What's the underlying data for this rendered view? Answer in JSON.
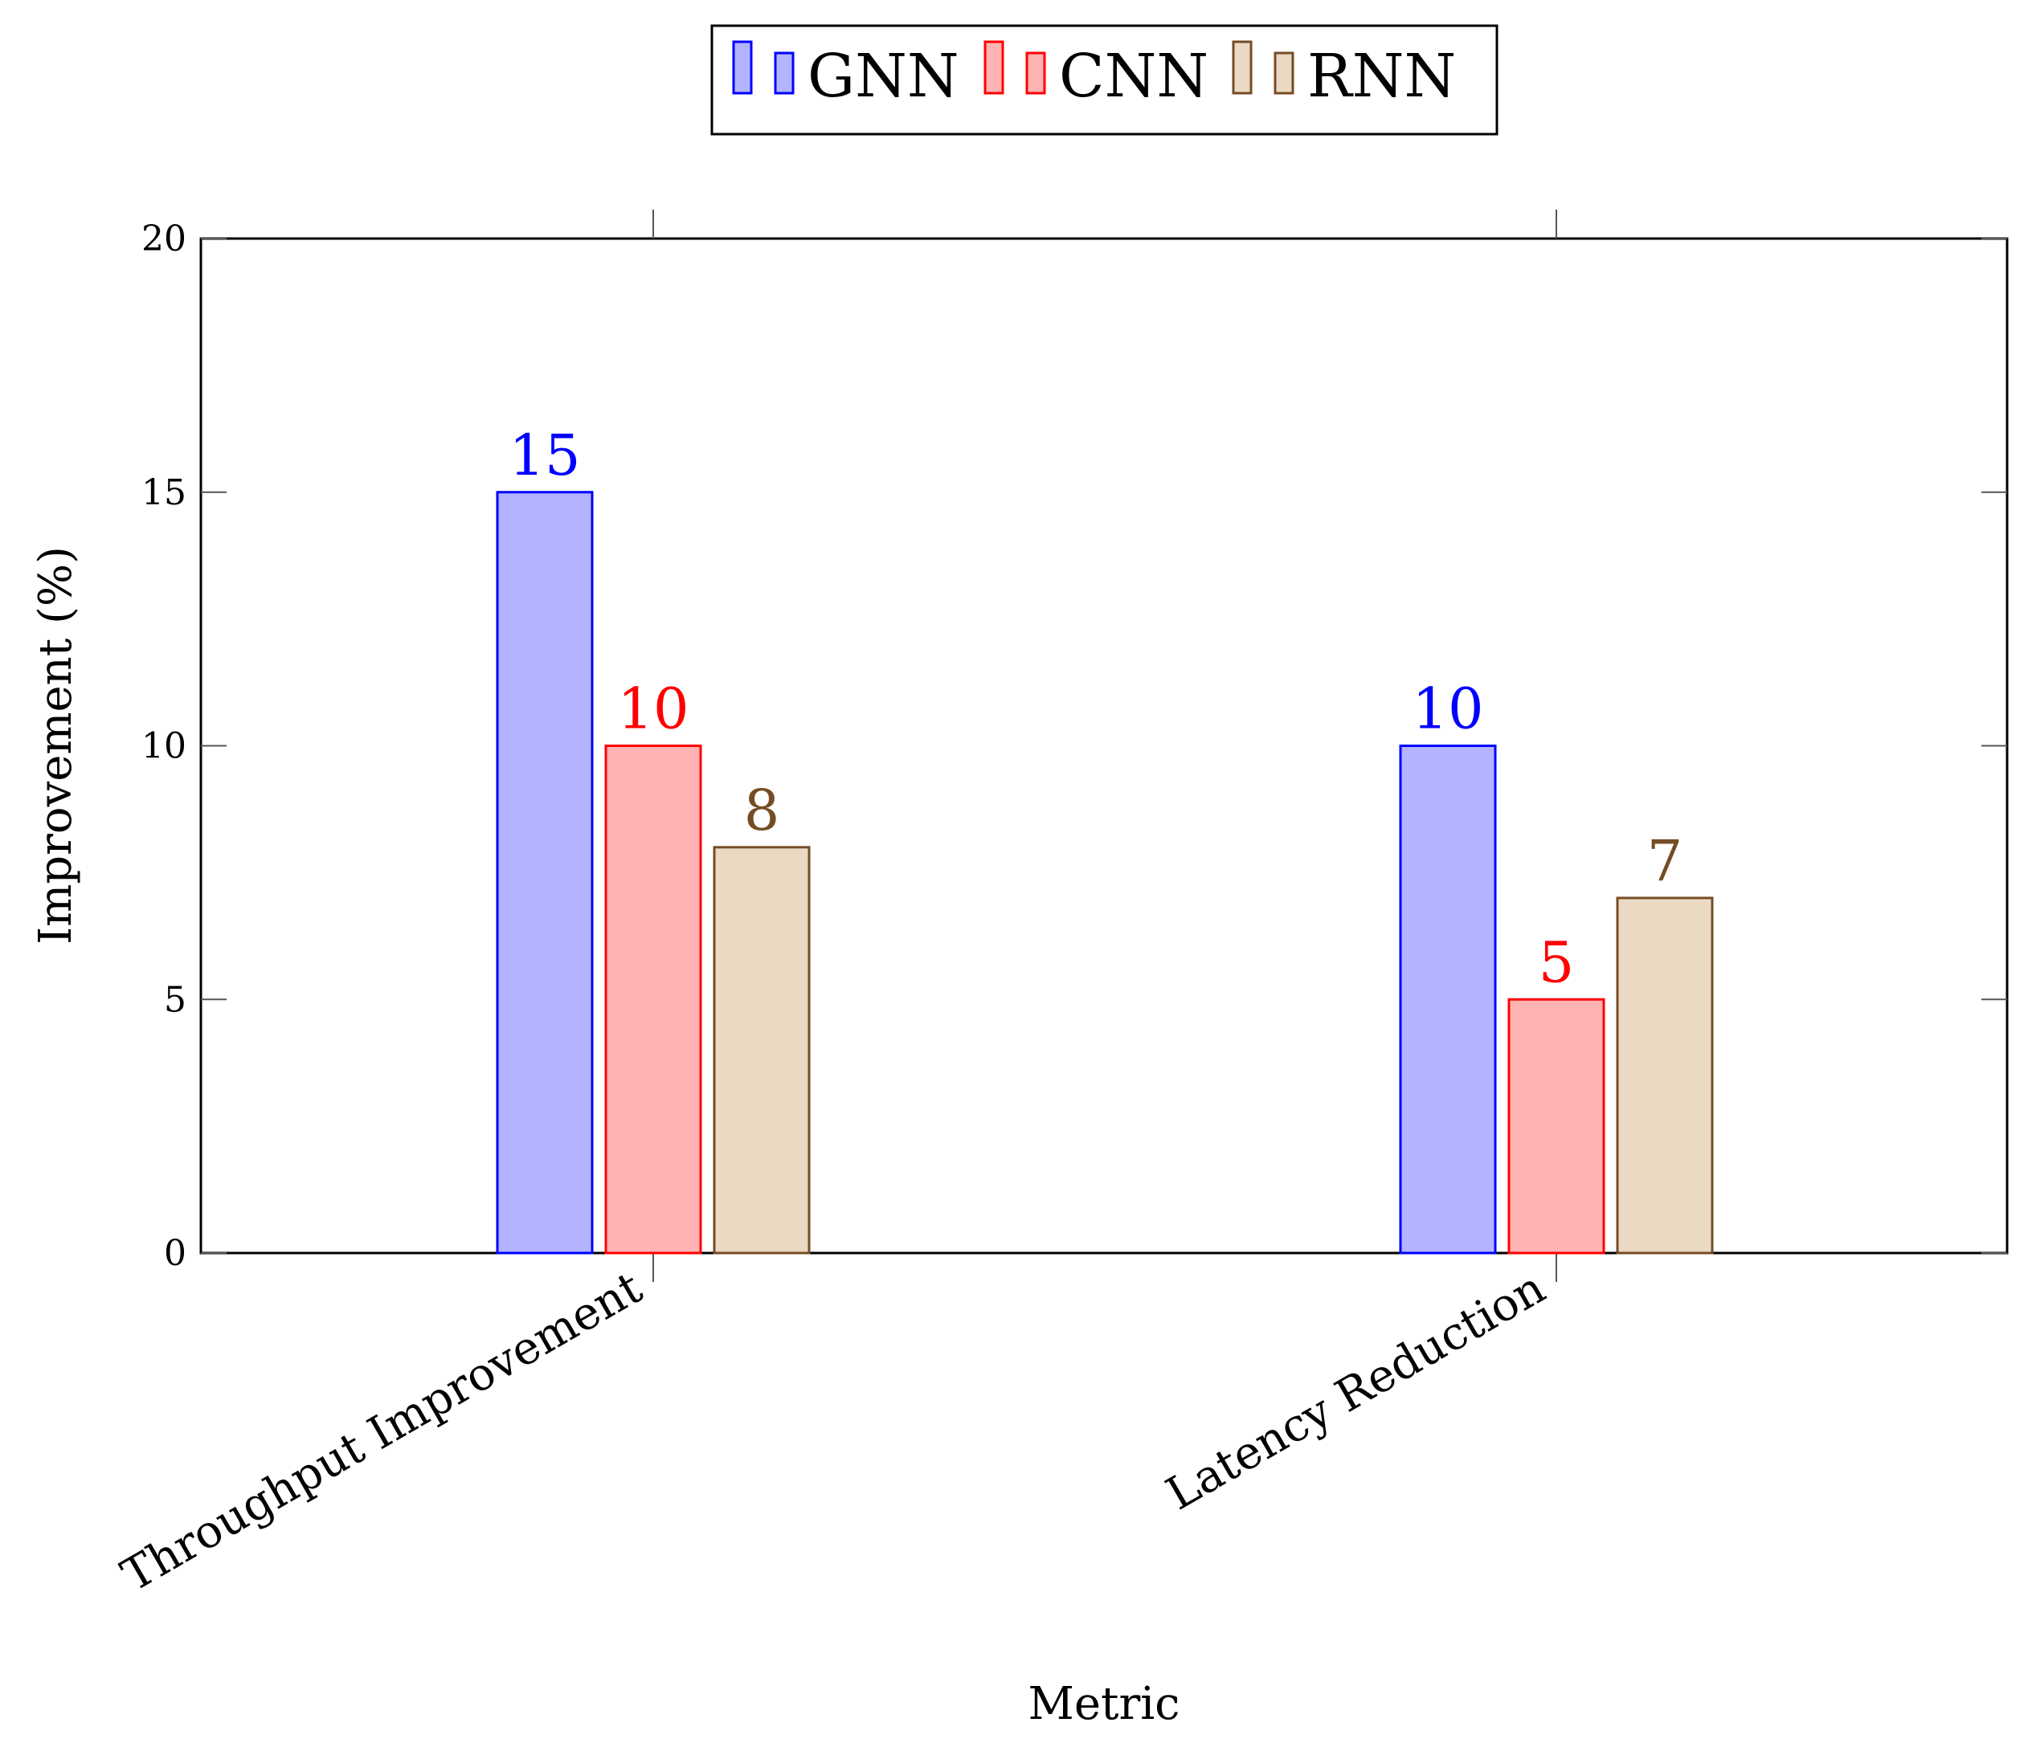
{
  "chart_data": {
    "type": "bar",
    "title": "",
    "xlabel": "Metric",
    "ylabel": "Improvement (%)",
    "categories": [
      "Throughput Improvement",
      "Latency Reduction"
    ],
    "ylim": [
      0,
      20
    ],
    "yticks": [
      0,
      5,
      10,
      15,
      20
    ],
    "grid": false,
    "legend_position": "top-center",
    "series": [
      {
        "name": "GNN",
        "values": [
          15,
          10
        ],
        "stroke": "#0000ff",
        "fill": "#b3b3ff"
      },
      {
        "name": "CNN",
        "values": [
          10,
          5
        ],
        "stroke": "#ff0000",
        "fill": "#ffb3b3"
      },
      {
        "name": "RNN",
        "values": [
          8,
          7
        ],
        "stroke": "#754c24",
        "fill": "#ead9c3"
      }
    ]
  }
}
